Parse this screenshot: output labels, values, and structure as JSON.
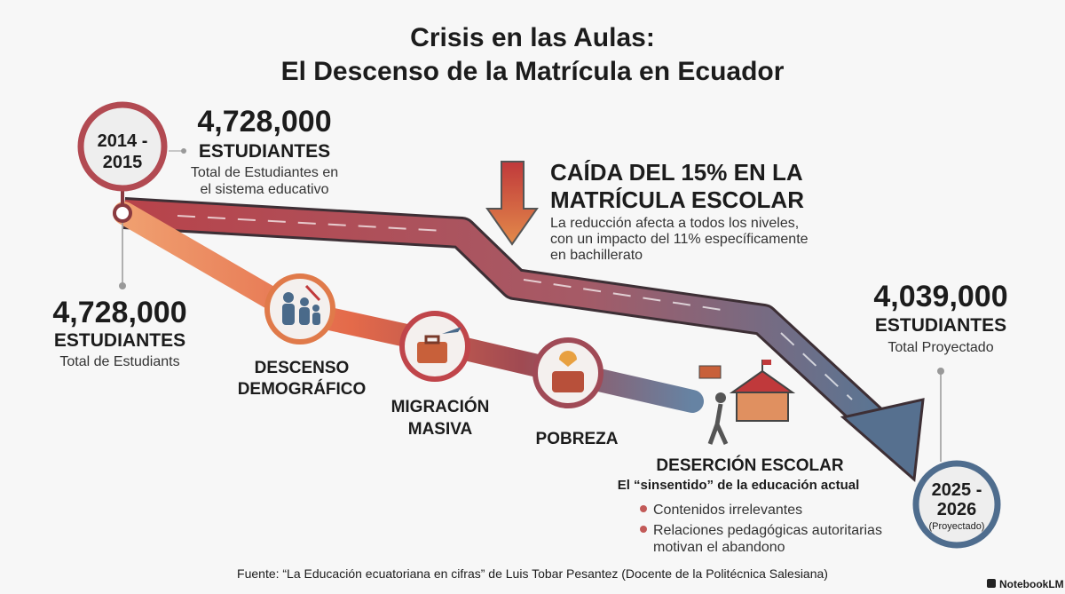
{
  "header": {
    "title_lines": [
      "Crisis en las Aulas:",
      "El Descenso de la Matrícula en Ecuador"
    ]
  },
  "start": {
    "year_lines": [
      "2014 -",
      "2015"
    ]
  },
  "top_stat": {
    "number": "4,728,000",
    "unit": "ESTUDIANTES",
    "caption_lines": [
      "Total de Estudiantes en",
      "el sistema educativo"
    ]
  },
  "left_stat": {
    "number": "4,728,000",
    "unit": "ESTUDIANTES",
    "caption": "Total de Estudiants"
  },
  "drop": {
    "title_lines": [
      "CAÍDA DEL 15% EN LA",
      "MATRÍCULA ESCOLAR"
    ],
    "text_lines": [
      "La reducción afecta a todos los niveles,",
      "con un impacto del 11% específicamente",
      "en bachillerato"
    ]
  },
  "factors": [
    {
      "label_lines": [
        "DESCENSO",
        "DEMOGRÁFICO"
      ]
    },
    {
      "label_lines": [
        "MIGRACIÓN",
        "MASIVA"
      ]
    },
    {
      "label_lines": [
        "POBREZA"
      ]
    }
  ],
  "desercion": {
    "title": "DESERCIÓN ESCOLAR",
    "subtitle": "El “sinsentido” de la educación actual",
    "bullets": [
      {
        "lines": [
          "Contenidos irrelevantes"
        ]
      },
      {
        "lines": [
          "Relaciones pedagógicas autoritarias",
          "motivan el abandono"
        ]
      }
    ]
  },
  "end_stat": {
    "number": "4,039,000",
    "unit": "ESTUDIANTES",
    "caption": "Total Proyectado"
  },
  "end": {
    "year_lines": [
      "2025 -",
      "2026"
    ],
    "note": "(Proyectado)"
  },
  "footer": {
    "source": "Fuente: “La Educación ecuatoriana en cifras” de Luis Tobar Pesantez (Docente de la Politécnica Salesiana)",
    "brand": "NotebookLM"
  }
}
